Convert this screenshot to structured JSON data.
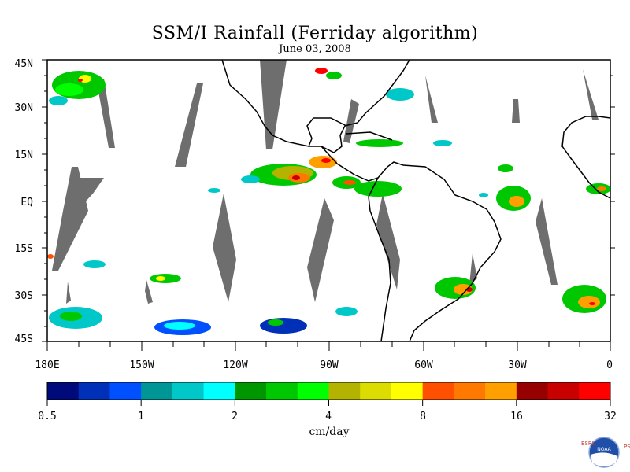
{
  "title": "SSM/I Rainfall (Ferriday algorithm)",
  "subtitle": "June 03, 2008",
  "lat_labels": [
    "45N",
    "30N",
    "15N",
    "EQ",
    "15S",
    "30S",
    "45S"
  ],
  "lon_labels": [
    "180E",
    "150W",
    "120W",
    "90W",
    "60W",
    "30W",
    "0"
  ],
  "colorbar": {
    "units": "cm/day",
    "tick_labels": [
      "0.5",
      "1",
      "2",
      "4",
      "8",
      "16",
      "32"
    ],
    "colors": [
      "#000a7a",
      "#0030b8",
      "#0050ff",
      "#009696",
      "#00c8c8",
      "#00ffff",
      "#009600",
      "#00c800",
      "#00ff00",
      "#b4b400",
      "#dcdc00",
      "#ffff00",
      "#ff5000",
      "#ff7800",
      "#ffa000",
      "#960000",
      "#c80000",
      "#ff0000"
    ]
  },
  "logo": {
    "left_letters": "ESRL",
    "right_letters": "PSD",
    "center": "NOAA"
  },
  "colors": {
    "swath_gap": "#6e6e6e",
    "coastline": "#000000"
  }
}
